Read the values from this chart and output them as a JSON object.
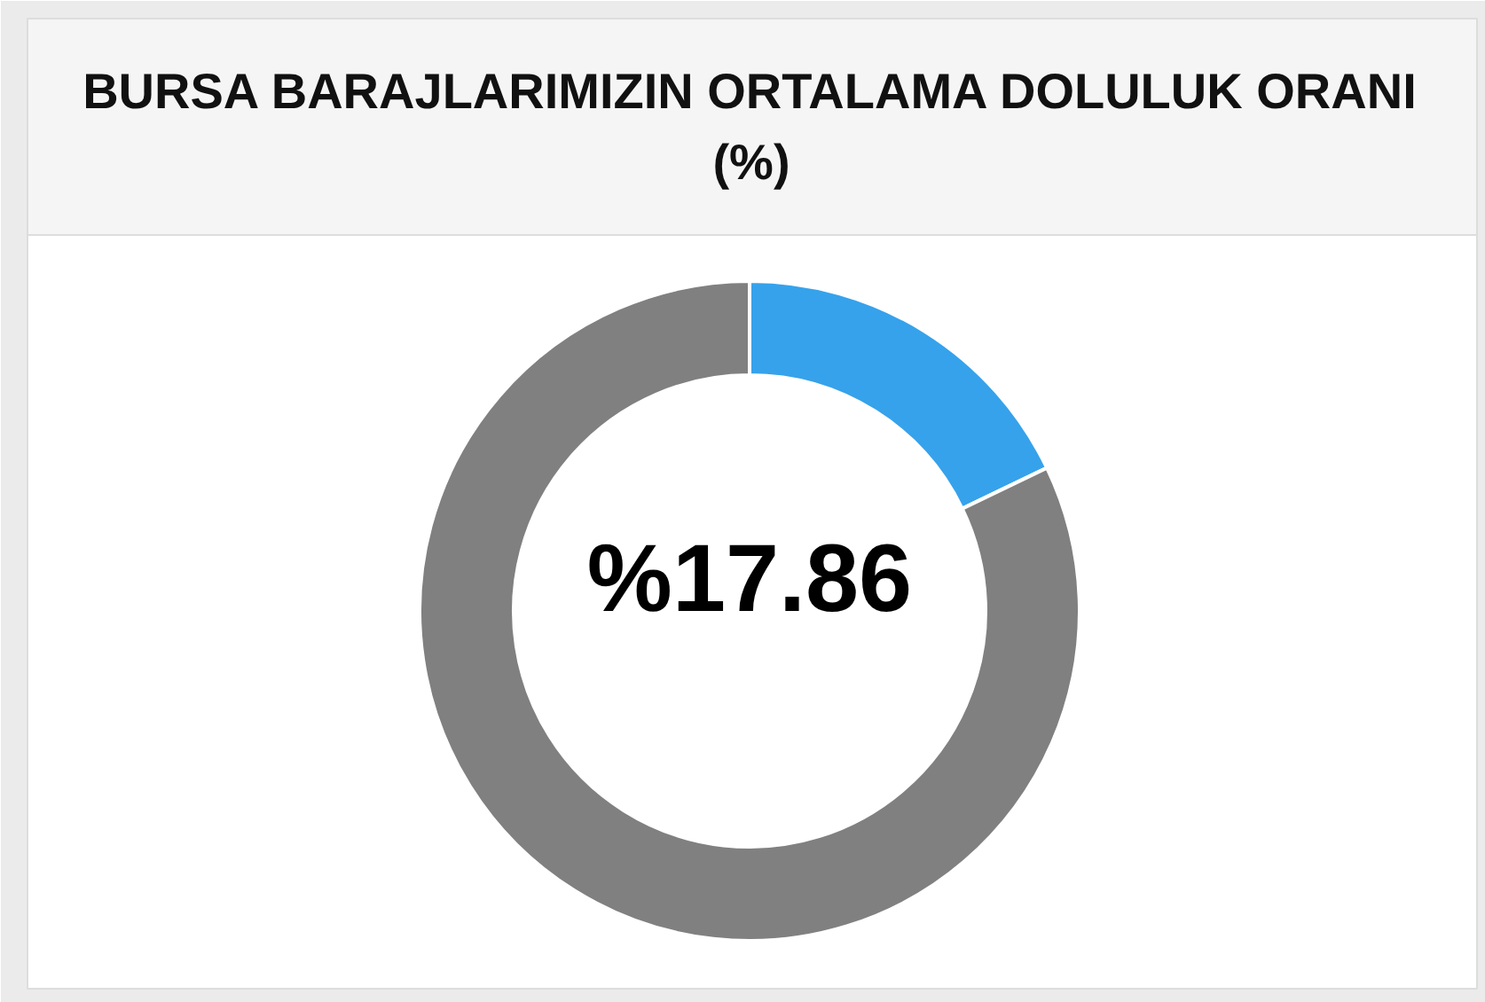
{
  "chart_data": {
    "type": "donut",
    "title": "BURSA BARAJLARIMIZIN ORTALAMA DOLULUK ORANI (%)",
    "categories": [
      null,
      null
    ],
    "values": [
      17.86,
      82.14
    ],
    "colors": [
      "#36a2eb",
      "#808080"
    ],
    "value_labels": [
      "%17.86",
      null
    ]
  }
}
